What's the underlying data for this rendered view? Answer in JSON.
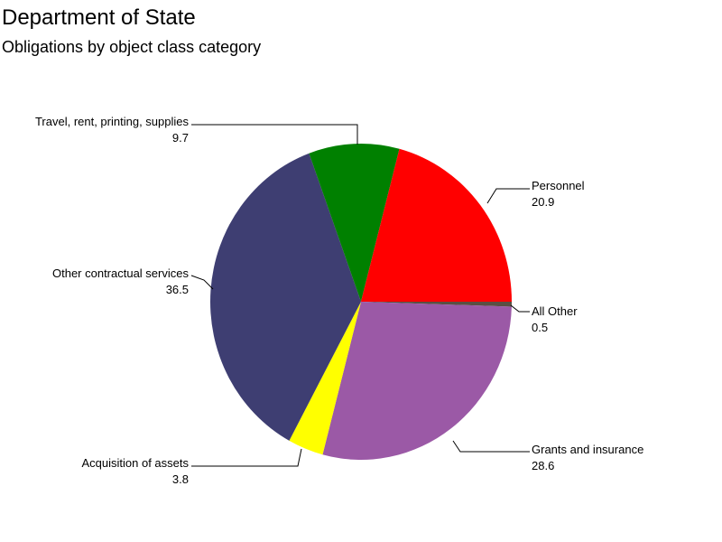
{
  "chart_data": {
    "type": "pie",
    "title": "Department of State",
    "subtitle": "Obligations by object class category",
    "slices": [
      {
        "label": "All Other",
        "value": 0.5,
        "color": "#5a4f43"
      },
      {
        "label": "Grants and insurance",
        "value": 28.6,
        "color": "#9b59a6"
      },
      {
        "label": "Acquisition of assets",
        "value": 3.8,
        "color": "#ffff00"
      },
      {
        "label": "Other contractual services",
        "value": 36.5,
        "color": "#3e3e72"
      },
      {
        "label": "Travel, rent, printing, supplies",
        "value": 9.7,
        "color": "#008000"
      },
      {
        "label": "Personnel",
        "value": 20.9,
        "color": "#ff0000"
      }
    ],
    "value_labels": [
      "0.5",
      "28.6",
      "3.8",
      "36.5",
      "9.7",
      "20.9"
    ],
    "legend": "none"
  }
}
